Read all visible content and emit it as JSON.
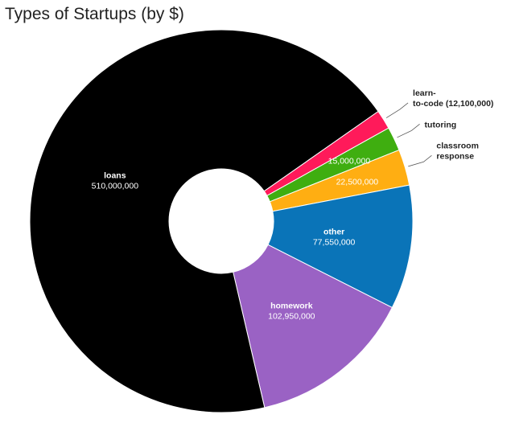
{
  "title": "Types of Startups (by $)",
  "chart_data": {
    "type": "pie",
    "title": "Types of Startups (by $)",
    "donut": true,
    "slices": [
      {
        "name": "learn-to-code",
        "value": 12100000,
        "color": "#ff1a5a",
        "label_lines": [
          "learn-",
          "to-code (12,100,000)"
        ],
        "label_placement": "outside"
      },
      {
        "name": "tutoring",
        "value": 15000000,
        "color": "#3fae10",
        "label_lines": [
          "tutoring"
        ],
        "value_text": "15,000,000",
        "label_placement": "outside-name-inside-value"
      },
      {
        "name": "classroom response",
        "value": 22500000,
        "color": "#ffae12",
        "label_lines": [
          "classroom",
          "response"
        ],
        "value_text": "22,500,000",
        "label_placement": "outside-name-inside-value"
      },
      {
        "name": "other",
        "value": 77550000,
        "color": "#0a74b8",
        "label_lines": [
          "other",
          "77,550,000"
        ],
        "label_placement": "inside"
      },
      {
        "name": "homework",
        "value": 102950000,
        "color": "#9a62c4",
        "label_lines": [
          "homework",
          "102,950,000"
        ],
        "label_placement": "inside"
      },
      {
        "name": "loans",
        "value": 510000000,
        "color": "#000000",
        "label_lines": [
          "loans",
          "510,000,000"
        ],
        "label_placement": "inside"
      }
    ]
  }
}
